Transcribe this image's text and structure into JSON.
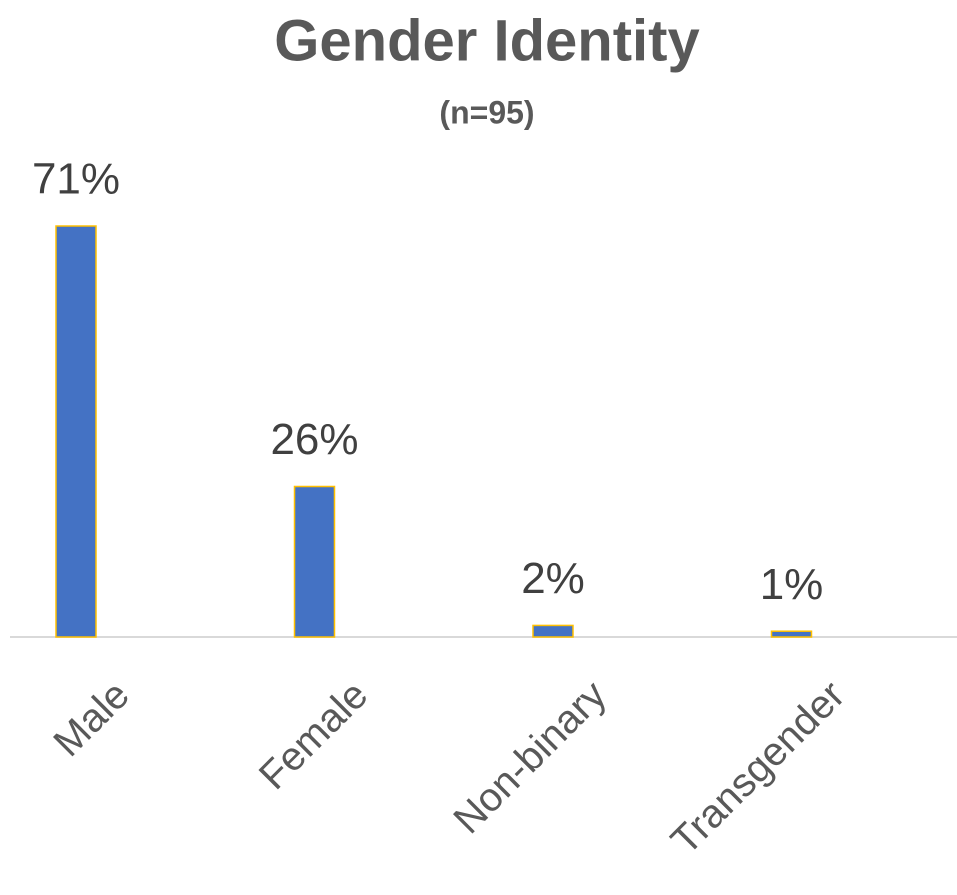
{
  "chart_data": {
    "type": "bar",
    "title": "Gender Identity",
    "subtitle": "(n=95)",
    "categories": [
      "Male",
      "Female",
      "Non-binary",
      "Transgender"
    ],
    "values": [
      71,
      26,
      2,
      1
    ],
    "value_labels": [
      "71%",
      "26%",
      "2%",
      "1%"
    ],
    "color": "#4472c4"
  }
}
